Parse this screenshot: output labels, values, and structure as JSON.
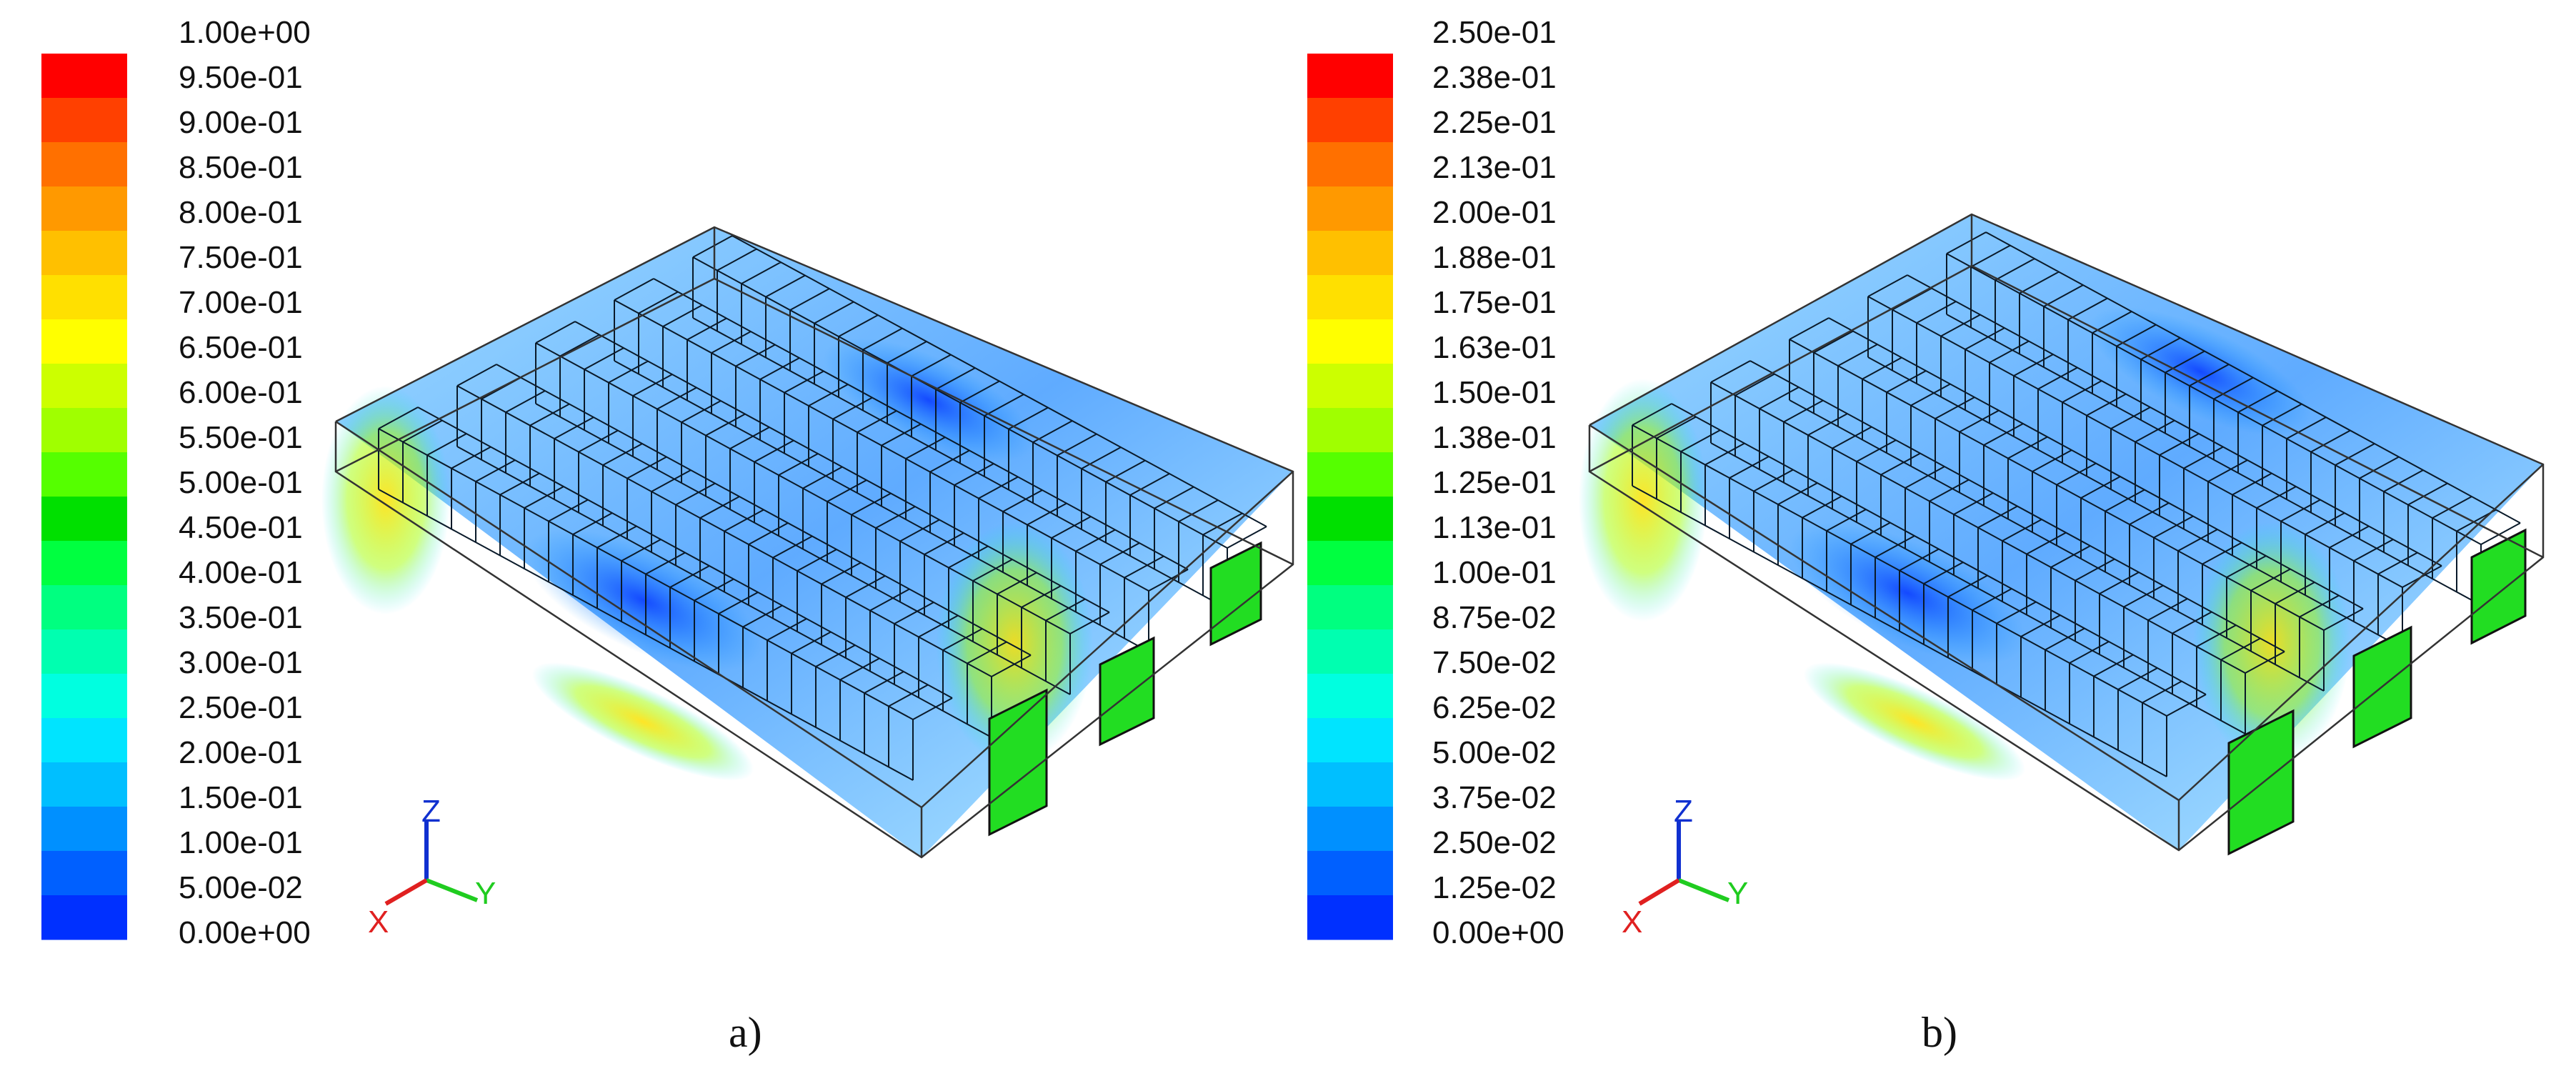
{
  "colormap": [
    "#0000ff",
    "#0030ff",
    "#0060ff",
    "#0090ff",
    "#00bfff",
    "#00e4ff",
    "#00ffe0",
    "#00ffb0",
    "#00ff80",
    "#00ff40",
    "#00e000",
    "#55ff00",
    "#a0ff00",
    "#ccff00",
    "#ffff00",
    "#ffe000",
    "#ffc000",
    "#ff9900",
    "#ff7000",
    "#ff4000",
    "#ff0000"
  ],
  "panels": [
    {
      "label": "a)",
      "colorbar_ticks": [
        "1.00e+00",
        "9.50e-01",
        "9.00e-01",
        "8.50e-01",
        "8.00e-01",
        "7.50e-01",
        "7.00e-01",
        "6.50e-01",
        "6.00e-01",
        "5.50e-01",
        "5.00e-01",
        "4.50e-01",
        "4.00e-01",
        "3.50e-01",
        "3.00e-01",
        "2.50e-01",
        "2.00e-01",
        "1.50e-01",
        "1.00e-01",
        "5.00e-02",
        "0.00e+00"
      ],
      "axes": {
        "z": "Z",
        "y": "Y",
        "x": "X"
      }
    },
    {
      "label": "b)",
      "colorbar_ticks": [
        "2.50e-01",
        "2.38e-01",
        "2.25e-01",
        "2.13e-01",
        "2.00e-01",
        "1.88e-01",
        "1.75e-01",
        "1.63e-01",
        "1.50e-01",
        "1.38e-01",
        "1.25e-01",
        "1.13e-01",
        "1.00e-01",
        "8.75e-02",
        "7.50e-02",
        "6.25e-02",
        "5.00e-02",
        "3.75e-02",
        "2.50e-02",
        "1.25e-02",
        "0.00e+00"
      ],
      "axes": {
        "z": "Z",
        "y": "Y",
        "x": "X"
      }
    }
  ]
}
